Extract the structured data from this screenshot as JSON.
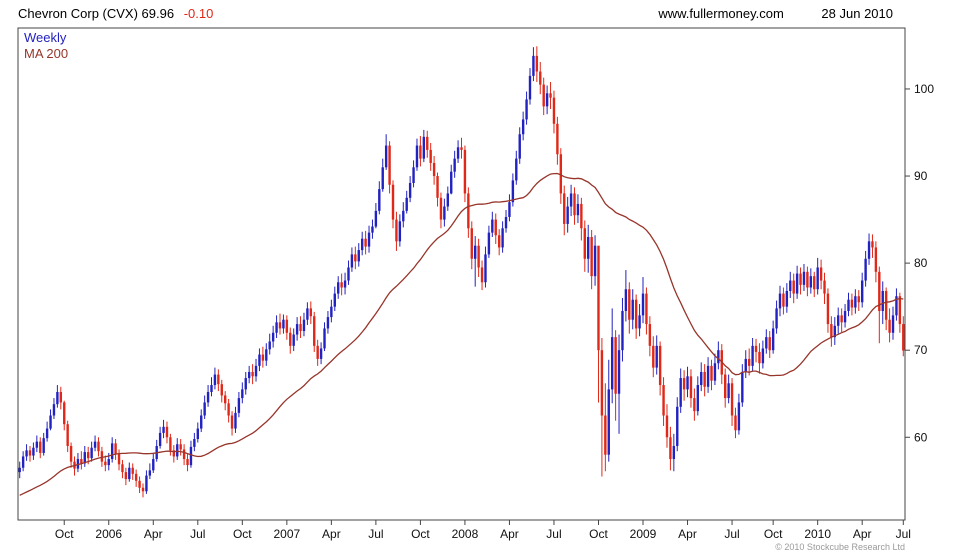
{
  "header": {
    "title": "Chevron Corp (CVX) 69.96",
    "change": "-0.10",
    "site": "www.fullermoney.com",
    "date": "28 Jun 2010"
  },
  "legend": {
    "weekly": "Weekly",
    "ma": "MA 200"
  },
  "footer": {
    "copyright": "© 2010 Stockcube Research Ltd"
  },
  "colors": {
    "up": "#2222c0",
    "down": "#e02818",
    "ma": "#97352b",
    "text": "#111111",
    "axis": "#444444",
    "muted": "#9a9a9a"
  },
  "chart_data": {
    "type": "candlestick",
    "title": "Chevron Corp (CVX)",
    "interval": "Weekly",
    "last_price": 69.96,
    "change": -0.1,
    "ylim": [
      50.5,
      107
    ],
    "y_ticks": [
      60,
      70,
      80,
      90,
      100
    ],
    "x_labels": [
      {
        "i": 13,
        "t": "Oct"
      },
      {
        "i": 26,
        "t": "2006"
      },
      {
        "i": 39,
        "t": "Apr"
      },
      {
        "i": 52,
        "t": "Jul"
      },
      {
        "i": 65,
        "t": "Oct"
      },
      {
        "i": 78,
        "t": "2007"
      },
      {
        "i": 91,
        "t": "Apr"
      },
      {
        "i": 104,
        "t": "Jul"
      },
      {
        "i": 117,
        "t": "Oct"
      },
      {
        "i": 130,
        "t": "2008"
      },
      {
        "i": 143,
        "t": "Apr"
      },
      {
        "i": 156,
        "t": "Jul"
      },
      {
        "i": 169,
        "t": "Oct"
      },
      {
        "i": 182,
        "t": "2009"
      },
      {
        "i": 195,
        "t": "Apr"
      },
      {
        "i": 208,
        "t": "Jul"
      },
      {
        "i": 220,
        "t": "Oct"
      },
      {
        "i": 233,
        "t": "2010"
      },
      {
        "i": 246,
        "t": "Apr"
      },
      {
        "i": 258,
        "t": "Jul"
      }
    ],
    "first_open": 56.0,
    "ma": {
      "label": "MA 200",
      "period": 40,
      "seed": [
        50.4,
        50.55,
        50.7,
        50.85,
        51.0,
        51.15,
        51.3,
        51.45,
        51.6,
        51.75,
        51.9,
        52.05,
        52.2,
        52.35,
        52.5,
        52.65,
        52.8,
        52.95,
        53.1,
        53.25,
        53.4,
        53.55,
        53.7,
        53.85,
        54.0,
        54.15,
        54.3,
        54.45,
        54.6,
        54.75,
        54.9,
        55.05,
        55.2,
        55.35,
        55.5,
        55.65,
        55.8,
        55.95,
        56.1
      ]
    },
    "weeks": [
      [
        57.2,
        55.3,
        56.5
      ],
      [
        58.4,
        56.1,
        57.8
      ],
      [
        59.2,
        57.3,
        58.5
      ],
      [
        59.0,
        57.2,
        57.9
      ],
      [
        59.4,
        57.4,
        58.8
      ],
      [
        60.2,
        58.3,
        59.5
      ],
      [
        60.0,
        57.6,
        58.2
      ],
      [
        60.5,
        57.9,
        59.9
      ],
      [
        61.8,
        59.5,
        61.0
      ],
      [
        63.2,
        60.8,
        62.5
      ],
      [
        64.5,
        62.1,
        63.8
      ],
      [
        66.0,
        63.4,
        65.2
      ],
      [
        65.8,
        63.2,
        64.0
      ],
      [
        64.2,
        60.8,
        61.5
      ],
      [
        61.9,
        58.3,
        59.0
      ],
      [
        59.4,
        56.5,
        57.2
      ],
      [
        57.8,
        55.6,
        56.4
      ],
      [
        58.2,
        56.0,
        57.5
      ],
      [
        58.4,
        56.3,
        57.0
      ],
      [
        59.0,
        56.6,
        58.3
      ],
      [
        58.9,
        56.9,
        57.6
      ],
      [
        59.5,
        57.2,
        58.8
      ],
      [
        60.2,
        58.4,
        59.5
      ],
      [
        60.0,
        57.8,
        58.4
      ],
      [
        58.9,
        56.6,
        57.2
      ],
      [
        57.9,
        56.1,
        56.8
      ],
      [
        58.2,
        56.2,
        57.5
      ],
      [
        60.0,
        57.1,
        59.3
      ],
      [
        59.8,
        57.4,
        58.1
      ],
      [
        58.6,
        56.2,
        56.9
      ],
      [
        57.4,
        55.3,
        56.0
      ],
      [
        56.5,
        54.5,
        55.2
      ],
      [
        57.1,
        54.9,
        56.5
      ],
      [
        57.0,
        55.1,
        55.8
      ],
      [
        56.3,
        54.3,
        55.0
      ],
      [
        55.5,
        53.6,
        54.2
      ],
      [
        54.7,
        53.1,
        53.8
      ],
      [
        56.2,
        53.5,
        55.6
      ],
      [
        57.0,
        55.2,
        56.2
      ],
      [
        58.1,
        55.9,
        57.5
      ],
      [
        59.7,
        57.2,
        59.0
      ],
      [
        61.2,
        58.7,
        60.5
      ],
      [
        62.0,
        59.9,
        61.2
      ],
      [
        61.8,
        59.3,
        60.0
      ],
      [
        60.4,
        57.9,
        58.5
      ],
      [
        59.1,
        57.1,
        57.8
      ],
      [
        59.9,
        57.4,
        59.2
      ],
      [
        59.8,
        57.9,
        58.6
      ],
      [
        59.2,
        56.8,
        57.5
      ],
      [
        58.1,
        56.1,
        56.8
      ],
      [
        59.6,
        56.5,
        58.9
      ],
      [
        60.5,
        58.4,
        59.8
      ],
      [
        61.7,
        59.4,
        61.0
      ],
      [
        63.2,
        60.6,
        62.5
      ],
      [
        64.8,
        62.1,
        64.0
      ],
      [
        66.0,
        63.5,
        65.2
      ],
      [
        66.9,
        64.7,
        66.0
      ],
      [
        68.0,
        65.5,
        67.2
      ],
      [
        67.8,
        65.3,
        66.1
      ],
      [
        66.6,
        64.0,
        64.8
      ],
      [
        65.3,
        63.1,
        63.9
      ],
      [
        64.4,
        61.7,
        62.5
      ],
      [
        63.0,
        60.2,
        61.0
      ],
      [
        63.5,
        60.5,
        62.8
      ],
      [
        65.2,
        62.3,
        64.5
      ],
      [
        66.3,
        63.9,
        65.5
      ],
      [
        67.5,
        64.9,
        66.8
      ],
      [
        68.2,
        66.2,
        67.5
      ],
      [
        68.4,
        66.1,
        67.0
      ],
      [
        69.0,
        66.4,
        68.2
      ],
      [
        70.2,
        67.6,
        69.5
      ],
      [
        70.4,
        68.0,
        68.8
      ],
      [
        70.8,
        68.2,
        70.1
      ],
      [
        71.9,
        69.5,
        71.0
      ],
      [
        72.8,
        70.3,
        72.0
      ],
      [
        74.0,
        71.4,
        73.2
      ],
      [
        74.2,
        71.8,
        72.5
      ],
      [
        74.1,
        71.9,
        73.5
      ],
      [
        74.0,
        71.2,
        72.0
      ],
      [
        72.6,
        69.6,
        70.5
      ],
      [
        72.5,
        69.9,
        71.8
      ],
      [
        73.8,
        71.1,
        73.0
      ],
      [
        73.9,
        71.4,
        72.2
      ],
      [
        74.3,
        71.6,
        73.5
      ],
      [
        75.5,
        72.9,
        74.8
      ],
      [
        75.6,
        73.0,
        73.9
      ],
      [
        74.4,
        69.8,
        70.5
      ],
      [
        71.2,
        68.2,
        69.0
      ],
      [
        70.9,
        68.4,
        70.2
      ],
      [
        73.2,
        69.9,
        72.5
      ],
      [
        74.5,
        71.9,
        73.8
      ],
      [
        75.8,
        73.2,
        75.0
      ],
      [
        77.3,
        74.5,
        76.5
      ],
      [
        78.5,
        75.9,
        77.8
      ],
      [
        78.8,
        76.3,
        77.2
      ],
      [
        78.9,
        76.4,
        78.0
      ],
      [
        80.3,
        77.5,
        79.5
      ],
      [
        81.8,
        79.0,
        81.0
      ],
      [
        81.9,
        79.3,
        80.2
      ],
      [
        82.3,
        79.6,
        81.5
      ],
      [
        83.6,
        80.9,
        82.8
      ],
      [
        83.7,
        81.0,
        81.9
      ],
      [
        84.3,
        81.2,
        83.5
      ],
      [
        85.0,
        82.8,
        84.2
      ],
      [
        86.9,
        84.0,
        86.0
      ],
      [
        89.4,
        85.6,
        88.5
      ],
      [
        92.0,
        88.2,
        91.0
      ],
      [
        94.8,
        90.7,
        93.5
      ],
      [
        94.0,
        88.0,
        89.0
      ],
      [
        89.5,
        84.0,
        85.0
      ],
      [
        85.9,
        81.4,
        82.5
      ],
      [
        85.6,
        81.9,
        84.8
      ],
      [
        87.0,
        84.1,
        86.0
      ],
      [
        88.3,
        85.7,
        87.5
      ],
      [
        90.0,
        87.0,
        89.2
      ],
      [
        91.8,
        88.7,
        91.0
      ],
      [
        94.3,
        90.6,
        93.5
      ],
      [
        94.6,
        91.1,
        92.0
      ],
      [
        95.3,
        91.6,
        94.5
      ],
      [
        95.2,
        92.1,
        93.0
      ],
      [
        93.8,
        90.6,
        91.5
      ],
      [
        92.3,
        89.0,
        90.0
      ],
      [
        90.4,
        86.5,
        87.5
      ],
      [
        88.1,
        84.0,
        85.0
      ],
      [
        87.4,
        84.2,
        86.5
      ],
      [
        88.8,
        86.0,
        88.0
      ],
      [
        91.3,
        87.9,
        90.5
      ],
      [
        92.9,
        89.8,
        92.0
      ],
      [
        94.1,
        91.5,
        93.3
      ],
      [
        94.4,
        92.0,
        93.0
      ],
      [
        93.5,
        87.0,
        88.0
      ],
      [
        88.7,
        82.9,
        84.0
      ],
      [
        84.8,
        79.3,
        80.5
      ],
      [
        83.1,
        77.3,
        82.0
      ],
      [
        82.8,
        78.4,
        79.5
      ],
      [
        80.3,
        76.9,
        77.8
      ],
      [
        81.9,
        77.2,
        81.0
      ],
      [
        84.3,
        80.6,
        83.5
      ],
      [
        85.9,
        83.0,
        85.0
      ],
      [
        85.7,
        82.2,
        83.2
      ],
      [
        83.9,
        80.9,
        81.8
      ],
      [
        84.8,
        81.2,
        84.0
      ],
      [
        86.1,
        83.5,
        85.3
      ],
      [
        87.9,
        84.8,
        87.0
      ],
      [
        90.3,
        86.5,
        89.5
      ],
      [
        92.9,
        89.0,
        92.0
      ],
      [
        95.6,
        91.4,
        94.8
      ],
      [
        97.4,
        94.1,
        96.5
      ],
      [
        99.7,
        95.9,
        98.8
      ],
      [
        102.4,
        98.2,
        101.5
      ],
      [
        104.8,
        100.9,
        103.8
      ],
      [
        104.9,
        100.8,
        102.0
      ],
      [
        103.1,
        99.4,
        100.5
      ],
      [
        101.3,
        97.0,
        98.0
      ],
      [
        100.4,
        97.1,
        99.5
      ],
      [
        100.8,
        97.7,
        99.0
      ],
      [
        99.8,
        94.9,
        96.0
      ],
      [
        96.8,
        91.3,
        92.5
      ],
      [
        93.2,
        86.8,
        88.0
      ],
      [
        88.9,
        83.2,
        84.5
      ],
      [
        87.6,
        83.5,
        86.5
      ],
      [
        89.0,
        85.4,
        88.0
      ],
      [
        88.7,
        84.4,
        85.5
      ],
      [
        87.9,
        84.6,
        86.8
      ],
      [
        87.5,
        82.6,
        84.0
      ],
      [
        84.9,
        79.0,
        80.5
      ],
      [
        84.4,
        78.9,
        83.0
      ],
      [
        83.8,
        77.0,
        78.5
      ],
      [
        83.2,
        77.4,
        82.0
      ],
      [
        81.8,
        64.0,
        70.0
      ],
      [
        71.4,
        55.5,
        62.5
      ],
      [
        66.2,
        56.1,
        58.0
      ],
      [
        68.9,
        57.2,
        65.5
      ],
      [
        74.8,
        63.9,
        71.5
      ],
      [
        72.3,
        61.9,
        65.0
      ],
      [
        71.8,
        60.4,
        70.0
      ],
      [
        76.0,
        68.7,
        74.5
      ],
      [
        79.2,
        73.3,
        77.0
      ],
      [
        77.8,
        71.9,
        73.5
      ],
      [
        77.0,
        72.4,
        75.8
      ],
      [
        76.4,
        71.3,
        72.5
      ],
      [
        75.3,
        71.6,
        74.0
      ],
      [
        78.4,
        73.1,
        76.5
      ],
      [
        77.2,
        71.8,
        73.0
      ],
      [
        73.9,
        69.3,
        70.5
      ],
      [
        71.6,
        66.9,
        68.0
      ],
      [
        71.7,
        67.2,
        70.5
      ],
      [
        71.0,
        64.8,
        66.0
      ],
      [
        66.9,
        61.3,
        62.5
      ],
      [
        63.8,
        58.8,
        60.0
      ],
      [
        61.2,
        56.2,
        57.5
      ],
      [
        60.4,
        56.1,
        59.0
      ],
      [
        64.6,
        58.4,
        63.5
      ],
      [
        67.9,
        62.8,
        66.8
      ],
      [
        67.7,
        64.2,
        65.5
      ],
      [
        68.1,
        64.6,
        67.0
      ],
      [
        67.8,
        63.4,
        64.5
      ],
      [
        65.6,
        61.9,
        63.0
      ],
      [
        67.0,
        62.5,
        66.0
      ],
      [
        68.6,
        65.3,
        67.5
      ],
      [
        68.4,
        64.7,
        65.8
      ],
      [
        69.2,
        65.1,
        68.2
      ],
      [
        68.9,
        65.4,
        66.5
      ],
      [
        69.6,
        66.0,
        68.5
      ],
      [
        71.0,
        67.8,
        70.0
      ],
      [
        70.7,
        66.1,
        67.2
      ],
      [
        67.9,
        63.4,
        64.5
      ],
      [
        67.2,
        63.9,
        66.2
      ],
      [
        66.8,
        61.3,
        62.5
      ],
      [
        63.4,
        59.9,
        60.8
      ],
      [
        65.0,
        60.3,
        64.0
      ],
      [
        68.4,
        63.5,
        67.5
      ],
      [
        70.0,
        66.8,
        69.0
      ],
      [
        70.2,
        67.1,
        68.2
      ],
      [
        71.4,
        67.6,
        70.5
      ],
      [
        71.3,
        68.6,
        69.8
      ],
      [
        70.8,
        67.3,
        68.5
      ],
      [
        71.1,
        67.9,
        70.2
      ],
      [
        72.4,
        69.6,
        71.5
      ],
      [
        72.2,
        69.1,
        70.0
      ],
      [
        73.4,
        69.6,
        72.5
      ],
      [
        75.7,
        71.9,
        74.8
      ],
      [
        77.4,
        73.9,
        76.5
      ],
      [
        77.2,
        74.1,
        75.0
      ],
      [
        77.7,
        74.3,
        76.8
      ],
      [
        79.0,
        76.0,
        78.0
      ],
      [
        78.8,
        75.4,
        76.5
      ],
      [
        79.7,
        75.9,
        78.8
      ],
      [
        79.5,
        76.4,
        77.5
      ],
      [
        79.9,
        76.8,
        79.0
      ],
      [
        79.6,
        76.2,
        77.2
      ],
      [
        79.4,
        76.5,
        78.5
      ],
      [
        79.0,
        76.1,
        77.0
      ],
      [
        80.6,
        76.4,
        79.5
      ],
      [
        80.4,
        77.0,
        78.0
      ],
      [
        78.9,
        75.3,
        76.5
      ],
      [
        77.1,
        72.0,
        73.0
      ],
      [
        73.9,
        70.4,
        71.5
      ],
      [
        73.8,
        70.6,
        72.8
      ],
      [
        74.9,
        71.9,
        74.0
      ],
      [
        74.8,
        72.1,
        73.2
      ],
      [
        75.3,
        72.6,
        74.5
      ],
      [
        76.6,
        73.9,
        75.8
      ],
      [
        76.5,
        74.0,
        74.9
      ],
      [
        77.0,
        74.2,
        76.2
      ],
      [
        76.9,
        74.5,
        75.5
      ],
      [
        78.9,
        74.9,
        78.0
      ],
      [
        81.4,
        77.3,
        80.5
      ],
      [
        83.4,
        79.8,
        82.5
      ],
      [
        83.3,
        80.6,
        81.8
      ],
      [
        82.5,
        77.8,
        79.0
      ],
      [
        79.6,
        70.8,
        74.5
      ],
      [
        77.9,
        73.0,
        76.8
      ],
      [
        77.2,
        72.3,
        73.5
      ],
      [
        74.8,
        70.9,
        72.0
      ],
      [
        75.0,
        71.2,
        74.0
      ],
      [
        77.1,
        73.4,
        76.2
      ],
      [
        76.6,
        72.0,
        73.0
      ],
      [
        73.9,
        69.3,
        69.96
      ]
    ]
  }
}
